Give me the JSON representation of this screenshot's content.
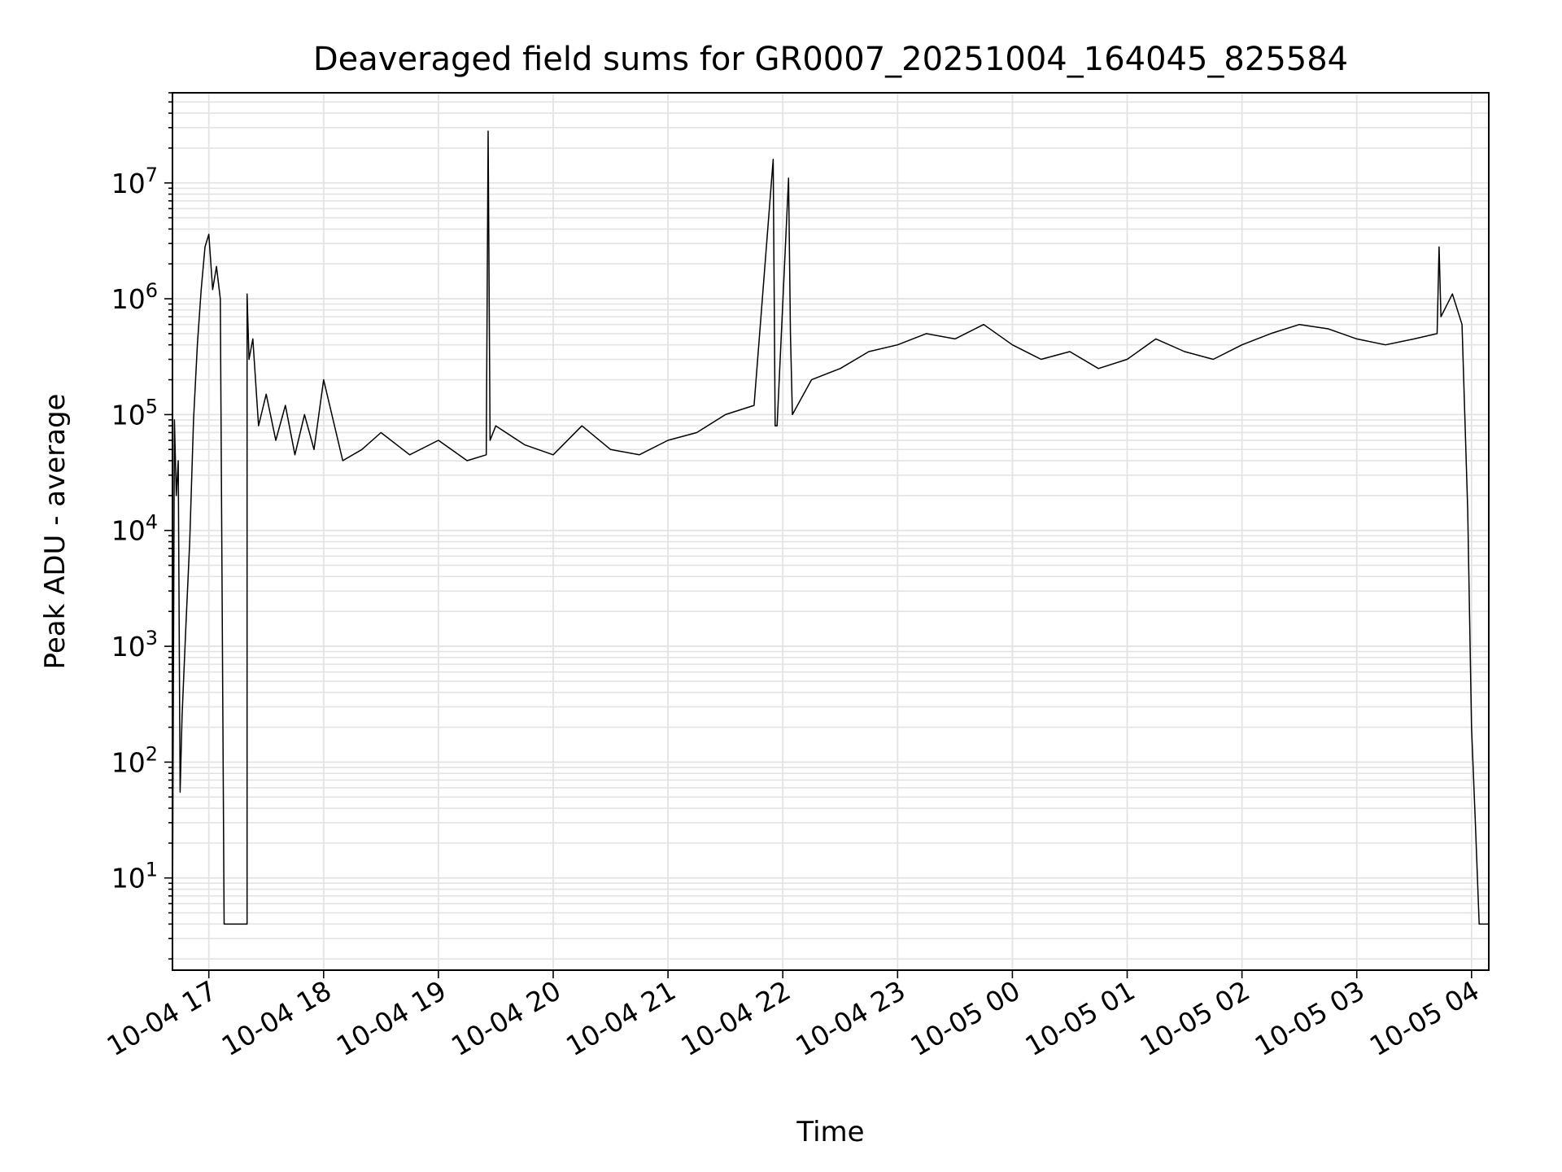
{
  "chart_data": {
    "type": "line",
    "title": "Deaveraged field sums for GR0007_20251004_164045_825584",
    "xlabel": "Time",
    "ylabel": "Peak ADU - average",
    "yscale": "log",
    "xlim": [
      "2025-10-04 16:41",
      "2025-10-05 04:09"
    ],
    "ylim": [
      1.6,
      60000000
    ],
    "grid": true,
    "line_color": "#000000",
    "grid_color": "#e3e3e3",
    "x_tick_labels": [
      "10-04 17",
      "10-04 18",
      "10-04 19",
      "10-04 20",
      "10-04 21",
      "10-04 22",
      "10-04 23",
      "10-05 00",
      "10-05 01",
      "10-05 02",
      "10-05 03",
      "10-05 04"
    ],
    "y_tick_labels": [
      {
        "base": "10",
        "exp": "1"
      },
      {
        "base": "10",
        "exp": "2"
      },
      {
        "base": "10",
        "exp": "3"
      },
      {
        "base": "10",
        "exp": "4"
      },
      {
        "base": "10",
        "exp": "5"
      },
      {
        "base": "10",
        "exp": "6"
      },
      {
        "base": "10",
        "exp": "7"
      }
    ],
    "series": [
      {
        "x": [
          "2025-10-04 16:41",
          "2025-10-04 16:42",
          "2025-10-04 16:43",
          "2025-10-04 16:44",
          "2025-10-04 16:45",
          "2025-10-04 16:46",
          "2025-10-04 16:48",
          "2025-10-04 16:50",
          "2025-10-04 16:52",
          "2025-10-04 16:54",
          "2025-10-04 16:56",
          "2025-10-04 16:58",
          "2025-10-04 17:00",
          "2025-10-04 17:02",
          "2025-10-04 17:04",
          "2025-10-04 17:06",
          "2025-10-04 17:08",
          "2025-10-04 17:10",
          "2025-10-04 17:11",
          "2025-10-04 17:12",
          "2025-10-04 17:20",
          "2025-10-04 17:20",
          "2025-10-04 17:21",
          "2025-10-04 17:23",
          "2025-10-04 17:26",
          "2025-10-04 17:30",
          "2025-10-04 17:35",
          "2025-10-04 17:40",
          "2025-10-04 17:45",
          "2025-10-04 17:50",
          "2025-10-04 17:55",
          "2025-10-04 18:00",
          "2025-10-04 18:10",
          "2025-10-04 18:20",
          "2025-10-04 18:30",
          "2025-10-04 18:45",
          "2025-10-04 19:00",
          "2025-10-04 19:15",
          "2025-10-04 19:25",
          "2025-10-04 19:26",
          "2025-10-04 19:27",
          "2025-10-04 19:30",
          "2025-10-04 19:45",
          "2025-10-04 20:00",
          "2025-10-04 20:15",
          "2025-10-04 20:30",
          "2025-10-04 20:45",
          "2025-10-04 21:00",
          "2025-10-04 21:15",
          "2025-10-04 21:30",
          "2025-10-04 21:45",
          "2025-10-04 21:55",
          "2025-10-04 21:56",
          "2025-10-04 21:57",
          "2025-10-04 22:03",
          "2025-10-04 22:04",
          "2025-10-04 22:05",
          "2025-10-04 22:15",
          "2025-10-04 22:30",
          "2025-10-04 22:45",
          "2025-10-04 23:00",
          "2025-10-04 23:15",
          "2025-10-04 23:30",
          "2025-10-04 23:45",
          "2025-10-05 00:00",
          "2025-10-05 00:15",
          "2025-10-05 00:30",
          "2025-10-05 00:45",
          "2025-10-05 01:00",
          "2025-10-05 01:15",
          "2025-10-05 01:30",
          "2025-10-05 01:45",
          "2025-10-05 02:00",
          "2025-10-05 02:15",
          "2025-10-05 02:30",
          "2025-10-05 02:45",
          "2025-10-05 03:00",
          "2025-10-05 03:15",
          "2025-10-05 03:30",
          "2025-10-05 03:42",
          "2025-10-05 03:43",
          "2025-10-05 03:44",
          "2025-10-05 03:50",
          "2025-10-05 03:55",
          "2025-10-05 03:58",
          "2025-10-05 04:00",
          "2025-10-05 04:02",
          "2025-10-05 04:04",
          "2025-10-05 04:05",
          "2025-10-05 04:09"
        ],
        "y": [
          4,
          90000,
          20000,
          40000,
          55,
          250,
          1500,
          8000,
          90000,
          400000,
          1200000,
          2800000,
          3600000,
          1200000,
          1900000,
          1000000,
          4,
          4,
          4,
          4,
          4,
          1100000,
          300000,
          450000,
          80000,
          150000,
          60000,
          120000,
          45000,
          100000,
          50000,
          200000,
          40000,
          50000,
          70000,
          45000,
          60000,
          40000,
          45000,
          28000000,
          60000,
          80000,
          55000,
          45000,
          80000,
          50000,
          45000,
          60000,
          70000,
          100000,
          120000,
          16000000,
          80000,
          80000,
          11000000,
          500000,
          100000,
          200000,
          250000,
          350000,
          400000,
          500000,
          450000,
          600000,
          400000,
          300000,
          350000,
          250000,
          300000,
          450000,
          350000,
          300000,
          400000,
          500000,
          600000,
          550000,
          450000,
          400000,
          450000,
          500000,
          2800000,
          700000,
          1100000,
          600000,
          15000,
          200,
          30,
          4,
          4,
          4
        ]
      }
    ]
  }
}
